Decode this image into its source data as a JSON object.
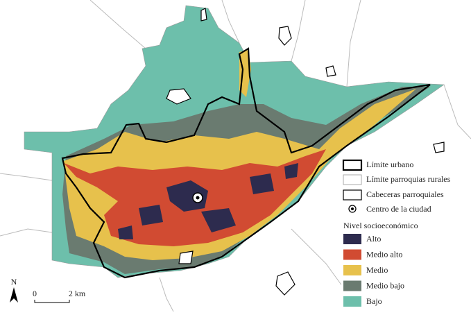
{
  "north": "N",
  "scale": {
    "start": "0",
    "end": "2 km"
  },
  "legend": {
    "boundaries": [
      {
        "label": "Límite urbano"
      },
      {
        "label": "Límite parroquias rurales"
      },
      {
        "label": "Cabeceras parroquiales"
      },
      {
        "label": "Centro de la ciudad"
      }
    ],
    "title": "Nivel socioeconómico",
    "levels": [
      {
        "label": "Alto",
        "color": "#2d2b4e"
      },
      {
        "label": "Medio alto",
        "color": "#d14b32"
      },
      {
        "label": "Medio",
        "color": "#e7c14c"
      },
      {
        "label": "Medio bajo",
        "color": "#6a7b70"
      },
      {
        "label": "Bajo",
        "color": "#6dbfab"
      }
    ]
  }
}
